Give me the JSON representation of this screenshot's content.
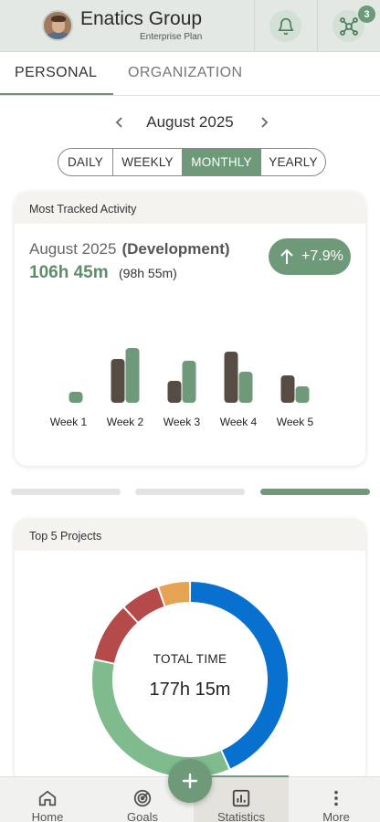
{
  "header": {
    "company_name": "Enatics Group",
    "plan": "Enterprise Plan",
    "notifications_icon": "bell-icon",
    "integrations_icon": "network-icon",
    "integrations_badge": "3",
    "accent_color": "#6e9a7a"
  },
  "tabs": [
    {
      "label": "PERSONAL",
      "active": true
    },
    {
      "label": "ORGANIZATION",
      "active": false
    }
  ],
  "month_nav": {
    "label": "August 2025",
    "prev_icon": "chevron-left-icon",
    "next_icon": "chevron-right-icon"
  },
  "period_selector": {
    "options": [
      "DAILY",
      "WEEKLY",
      "MONTHLY",
      "YEARLY"
    ],
    "selected": "MONTHLY"
  },
  "activity_card": {
    "title": "Most Tracked Activity",
    "period": "August 2025",
    "activity": "(Development)",
    "hours": "106h 45m",
    "previous_hours": "(98h 55m)",
    "change": "+7.9%",
    "change_icon": "arrow-up-icon"
  },
  "chart_data": [
    {
      "type": "bar",
      "categories": [
        "Week 1",
        "Week 2",
        "Week 3",
        "Week 4",
        "Week 5"
      ],
      "series": [
        {
          "color": "#574c43",
          "values": [
            0,
            24,
            12,
            28,
            15
          ]
        },
        {
          "color": "#6e9a7a",
          "values": [
            6,
            30,
            23,
            17,
            9
          ]
        }
      ]
    },
    {
      "type": "pie",
      "title": "Top 5 Projects",
      "center_label": "TOTAL TIME",
      "center_value": "177h 15m",
      "values": [
        73.9,
        59.5,
        16.9,
        11.1,
        9.0
      ],
      "colors": [
        "#0870cf",
        "#7fbb8d",
        "#b54a4a",
        "#b54a4a",
        "#e5a354"
      ]
    }
  ],
  "pager": {
    "pages": 3,
    "current": 3
  },
  "bottom_nav": {
    "items": [
      {
        "label": "Home",
        "icon": "home-icon",
        "active": false
      },
      {
        "label": "Goals",
        "icon": "target-icon",
        "active": false
      },
      {
        "label": "Statistics",
        "icon": "bar-chart-icon",
        "active": true
      },
      {
        "label": "More",
        "icon": "more-vertical-icon",
        "active": false
      }
    ],
    "fab_icon": "plus-icon"
  }
}
